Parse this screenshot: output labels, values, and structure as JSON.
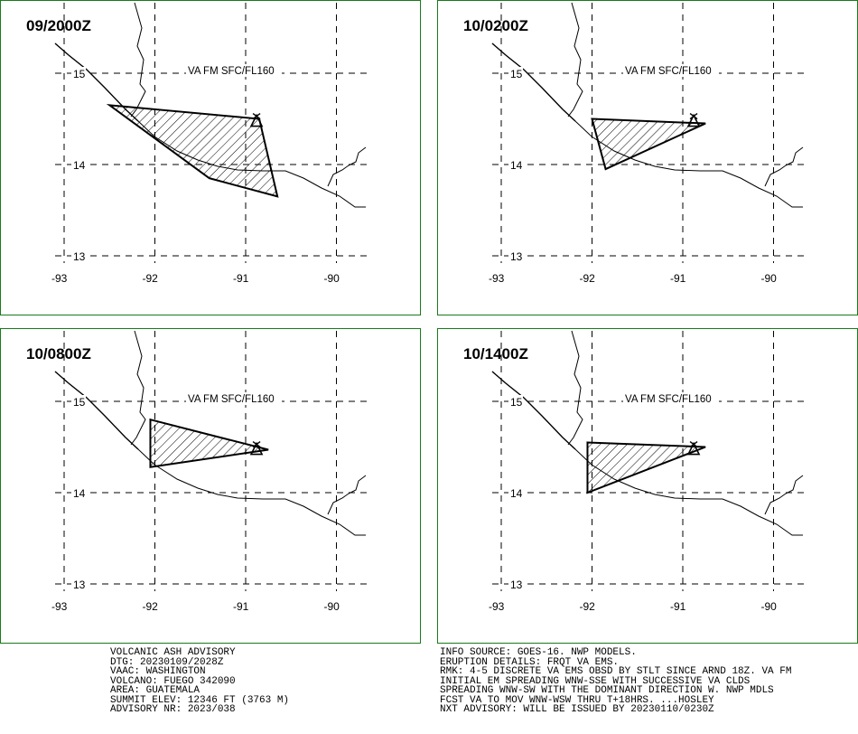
{
  "panels": [
    {
      "title": "09/2000Z",
      "label": "VA FM SFC/FL160",
      "polygon": [
        [
          -92.5,
          14.65
        ],
        [
          -90.85,
          14.5
        ],
        [
          -90.65,
          13.65
        ],
        [
          -91.4,
          13.85
        ]
      ]
    },
    {
      "title": "10/0200Z",
      "label": "VA FM SFC/FL160",
      "polygon": [
        [
          -92.0,
          14.5
        ],
        [
          -90.75,
          14.45
        ],
        [
          -91.85,
          13.95
        ]
      ]
    },
    {
      "title": "10/0800Z",
      "label": "VA FM SFC/FL160",
      "polygon": [
        [
          -92.05,
          14.8
        ],
        [
          -90.75,
          14.47
        ],
        [
          -92.05,
          14.28
        ]
      ]
    },
    {
      "title": "10/1400Z",
      "label": "VA FM SFC/FL160",
      "polygon": [
        [
          -92.05,
          14.55
        ],
        [
          -90.75,
          14.5
        ],
        [
          -92.05,
          14.0
        ]
      ]
    }
  ],
  "map": {
    "lat_ticks": [
      "15",
      "14",
      "13"
    ],
    "lon_ticks": [
      "-93",
      "-92",
      "-91",
      "-90"
    ],
    "volcano": [
      -90.88,
      14.47
    ]
  },
  "advisory_left": [
    "VOLCANIC ASH ADVISORY",
    "DTG: 20230109/2028Z",
    "VAAC: WASHINGTON",
    "VOLCANO: FUEGO 342090",
    "AREA: GUATEMALA",
    "SUMMIT ELEV: 12346 FT (3763 M)",
    "ADVISORY NR: 2023/038"
  ],
  "advisory_right": [
    "INFO SOURCE: GOES-16. NWP MODELS.",
    "ERUPTION DETAILS: FRQT VA EMS.",
    "RMK: 4-5 DISCRETE VA EMS OBSD BY STLT SINCE ARND 18Z. VA FM",
    "INITIAL EM SPREADING WNW-SSE WITH SUCCESSIVE VA CLDS",
    "SPREADING WNW-SW WITH THE DOMINANT DIRECTION W. NWP MDLS",
    "FCST VA TO MOV WNW-WSW THRU T+18HRS. ...HOSLEY",
    "NXT ADVISORY: WILL BE ISSUED BY 20230110/0230Z"
  ]
}
